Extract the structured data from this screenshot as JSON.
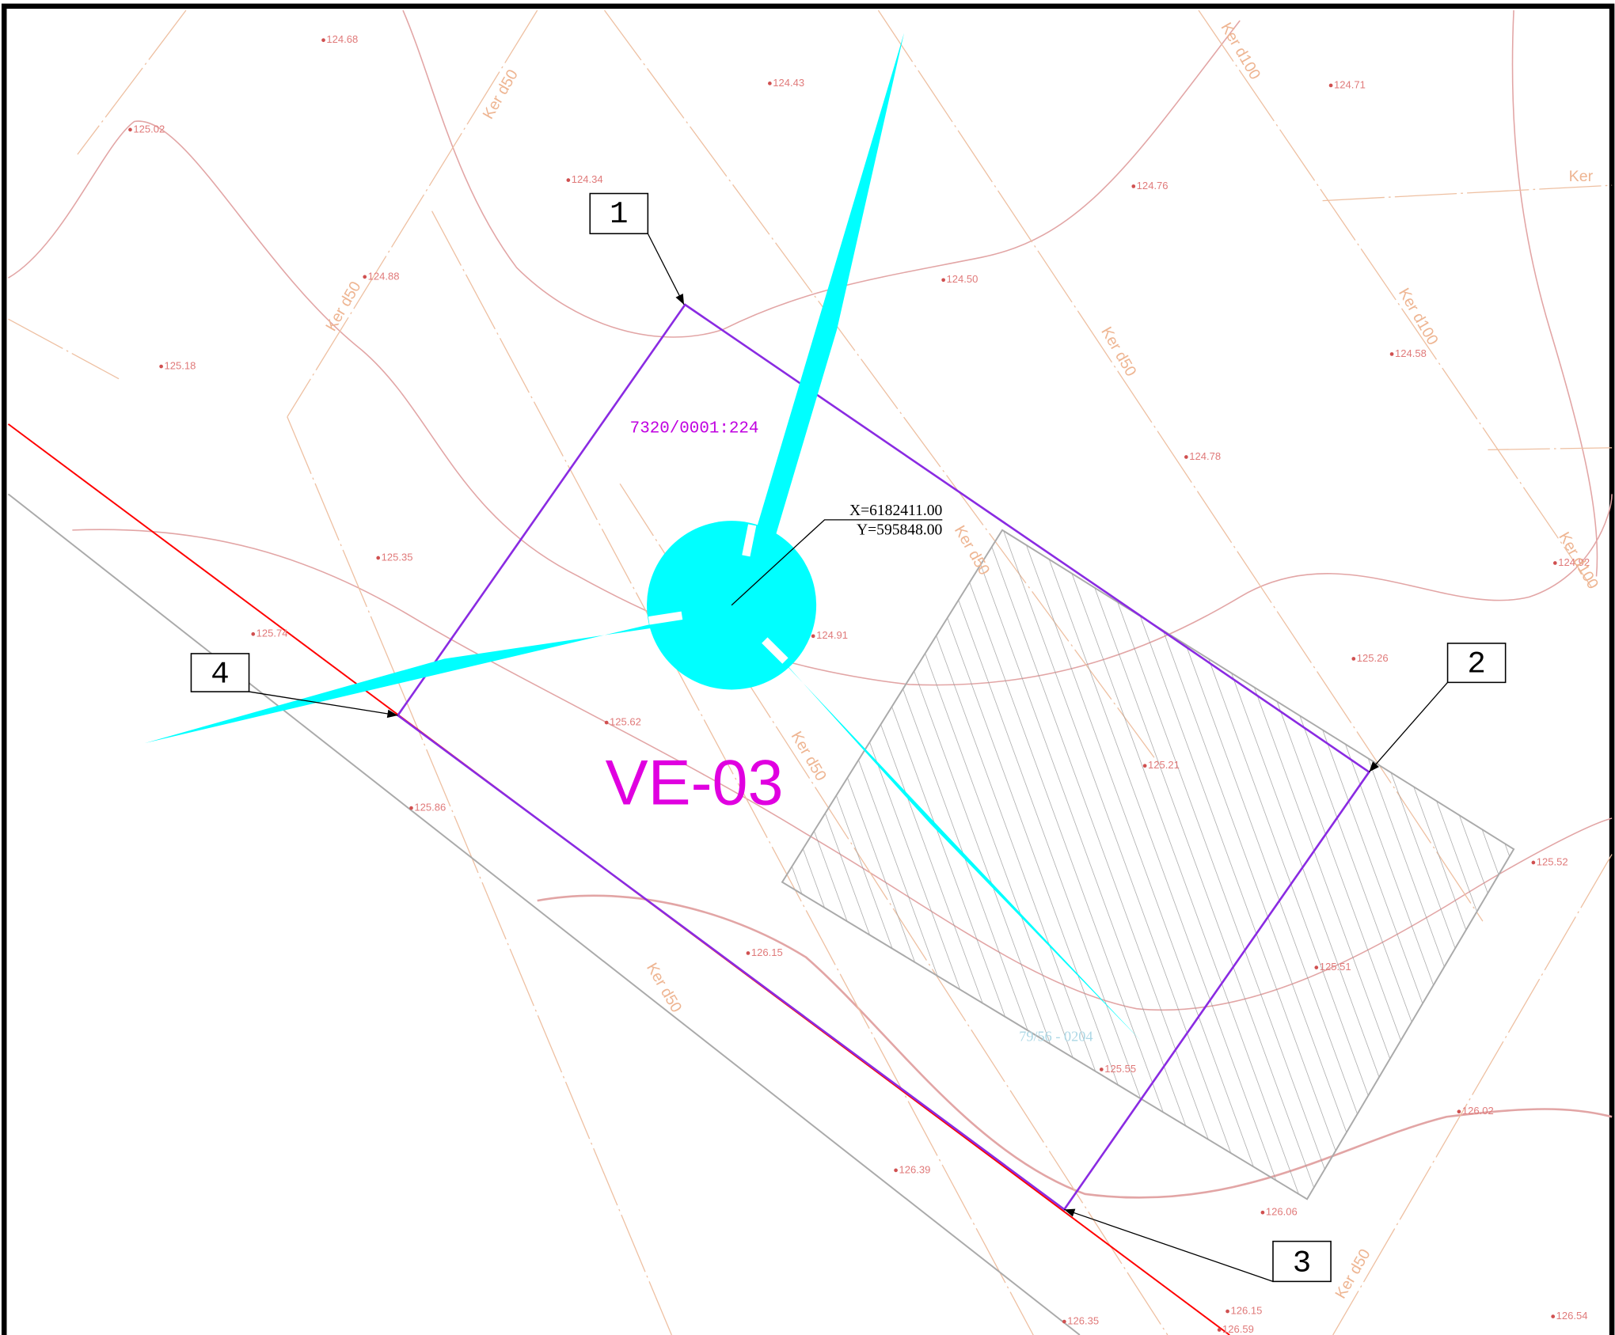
{
  "map": {
    "title": "VE-03",
    "parcel": "7320/0001:224",
    "parcel_neighbor": "79/56 - 0204",
    "coordinates": {
      "x": "X=6182411.00",
      "y": "Y=595848.00"
    },
    "points": [
      "1",
      "2",
      "3",
      "4"
    ],
    "pipes": [
      "Ker d50",
      "Ker d50",
      "Ker d50",
      "Ker d50",
      "Ker d50",
      "Ker d50",
      "Ker d50",
      "Ker d100",
      "Ker d100",
      "Ker d100",
      "Ker"
    ],
    "elevations": [
      "124.68",
      "124.43",
      "124.71",
      "125.02",
      "124.34",
      "124.76",
      "124.88",
      "124.50",
      "125.18",
      "124.91",
      "124.58",
      "124.78",
      "125.35",
      "124.92",
      "125.74",
      "125.26",
      "125.62",
      "125.21",
      "125.86",
      "125.52",
      "126.15",
      "125.51",
      "125.55",
      "126.02",
      "126.39",
      "126.06",
      "126.15",
      "126.35",
      "126.54",
      "126.59"
    ]
  }
}
